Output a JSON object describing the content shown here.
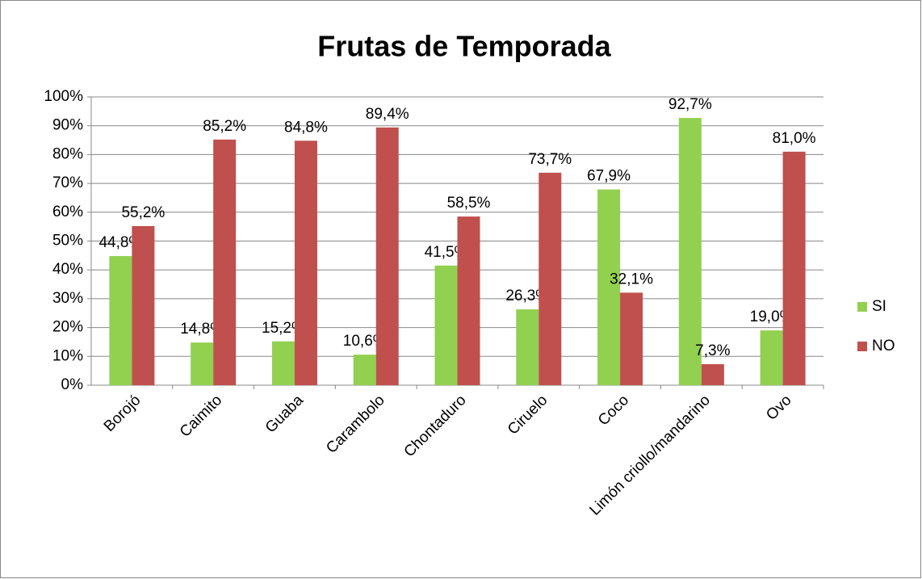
{
  "chart_data": {
    "type": "bar",
    "title": "Frutas de Temporada",
    "categories": [
      "Borojó",
      "Caimito",
      "Guaba",
      "Carambolo",
      "Chontaduro",
      "Ciruelo",
      "Coco",
      "Limón criollo/mandarino",
      "Ovo"
    ],
    "series": [
      {
        "name": "SI",
        "color": "#92d050",
        "values": [
          44.8,
          14.8,
          15.2,
          10.6,
          41.5,
          26.3,
          67.9,
          92.7,
          19.0
        ],
        "value_labels": [
          "44,8%",
          "14,8%",
          "15,2%",
          "10,6%",
          "41,5%",
          "26,3%",
          "67,9%",
          "92,7%",
          "19,0%"
        ]
      },
      {
        "name": "NO",
        "color": "#c0504d",
        "values": [
          55.2,
          85.2,
          84.8,
          89.4,
          58.5,
          73.7,
          32.1,
          7.3,
          81.0
        ],
        "value_labels": [
          "55,2%",
          "85,2%",
          "84,8%",
          "89,4%",
          "58,5%",
          "73,7%",
          "32,1%",
          "7,3%",
          "81,0%"
        ]
      }
    ],
    "ylim": [
      0,
      100
    ],
    "yticks": [
      {
        "value": 0,
        "label": "0%"
      },
      {
        "value": 10,
        "label": "10%"
      },
      {
        "value": 20,
        "label": "20%"
      },
      {
        "value": 30,
        "label": "30%"
      },
      {
        "value": 40,
        "label": "40%"
      },
      {
        "value": 50,
        "label": "50%"
      },
      {
        "value": 60,
        "label": "60%"
      },
      {
        "value": 70,
        "label": "70%"
      },
      {
        "value": 80,
        "label": "80%"
      },
      {
        "value": 90,
        "label": "90%"
      },
      {
        "value": 100,
        "label": "100%"
      }
    ],
    "grid": true,
    "legend": "right"
  }
}
